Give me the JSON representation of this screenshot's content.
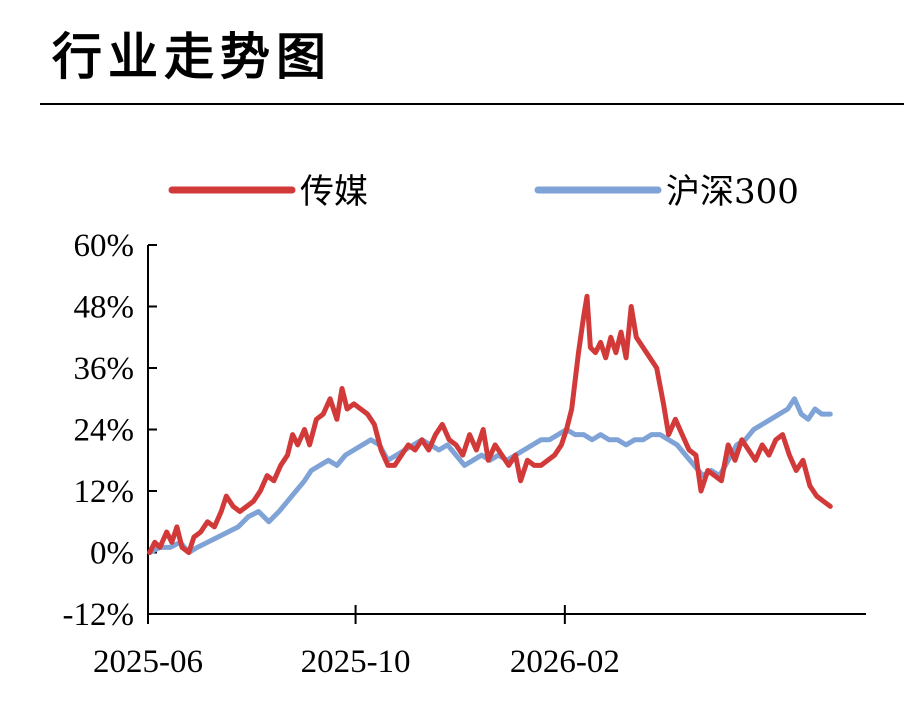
{
  "title": "行业走势图",
  "colors": {
    "media": "#d23a3a",
    "hs300": "#7fa3d6",
    "axis": "#000000"
  },
  "chart_data": {
    "type": "line",
    "legend_position": "top",
    "grid": false,
    "x_ticks": [
      "2025-06",
      "2025-10",
      "2026-02"
    ],
    "y_ticks": [
      "60%",
      "48%",
      "36%",
      "24%",
      "12%",
      "0%",
      "-12%"
    ],
    "ylim": [
      -12,
      60
    ],
    "xlim": [
      "2025-06",
      "2026-07-28"
    ],
    "series": [
      {
        "name": "传媒",
        "color": "#d23a3a",
        "points": [
          [
            "2025-06-02",
            0
          ],
          [
            "2025-06-05",
            2
          ],
          [
            "2025-06-08",
            1
          ],
          [
            "2025-06-12",
            4
          ],
          [
            "2025-06-15",
            2
          ],
          [
            "2025-06-18",
            5
          ],
          [
            "2025-06-21",
            1
          ],
          [
            "2025-06-25",
            0
          ],
          [
            "2025-06-28",
            3
          ],
          [
            "2025-07-02",
            4
          ],
          [
            "2025-07-06",
            6
          ],
          [
            "2025-07-10",
            5
          ],
          [
            "2025-07-14",
            8
          ],
          [
            "2025-07-17",
            11
          ],
          [
            "2025-07-21",
            9
          ],
          [
            "2025-07-25",
            8
          ],
          [
            "2025-07-29",
            9
          ],
          [
            "2025-08-02",
            10
          ],
          [
            "2025-08-06",
            12
          ],
          [
            "2025-08-10",
            15
          ],
          [
            "2025-08-14",
            14
          ],
          [
            "2025-08-18",
            17
          ],
          [
            "2025-08-22",
            19
          ],
          [
            "2025-08-25",
            23
          ],
          [
            "2025-08-28",
            21
          ],
          [
            "2025-09-01",
            24
          ],
          [
            "2025-09-04",
            21
          ],
          [
            "2025-09-08",
            26
          ],
          [
            "2025-09-12",
            27
          ],
          [
            "2025-09-16",
            30
          ],
          [
            "2025-09-20",
            26
          ],
          [
            "2025-09-23",
            32
          ],
          [
            "2025-09-26",
            28
          ],
          [
            "2025-09-30",
            29
          ],
          [
            "2025-10-04",
            28
          ],
          [
            "2025-10-08",
            27
          ],
          [
            "2025-10-12",
            25
          ],
          [
            "2025-10-16",
            20
          ],
          [
            "2025-10-20",
            17
          ],
          [
            "2025-10-24",
            17
          ],
          [
            "2025-10-28",
            19
          ],
          [
            "2025-11-01",
            21
          ],
          [
            "2025-11-05",
            20
          ],
          [
            "2025-11-09",
            22
          ],
          [
            "2025-11-13",
            20
          ],
          [
            "2025-11-17",
            23
          ],
          [
            "2025-11-21",
            25
          ],
          [
            "2025-11-25",
            22
          ],
          [
            "2025-11-29",
            21
          ],
          [
            "2025-12-03",
            19
          ],
          [
            "2025-12-07",
            23
          ],
          [
            "2025-12-11",
            20
          ],
          [
            "2025-12-15",
            24
          ],
          [
            "2025-12-18",
            18
          ],
          [
            "2025-12-22",
            21
          ],
          [
            "2025-12-26",
            19
          ],
          [
            "2025-12-30",
            17
          ],
          [
            "2026-01-03",
            19
          ],
          [
            "2026-01-06",
            14
          ],
          [
            "2026-01-10",
            18
          ],
          [
            "2026-01-14",
            17
          ],
          [
            "2026-01-18",
            17
          ],
          [
            "2026-01-22",
            18
          ],
          [
            "2026-01-26",
            19
          ],
          [
            "2026-01-30",
            21
          ],
          [
            "2026-02-02",
            24
          ],
          [
            "2026-02-05",
            28
          ],
          [
            "2026-02-09",
            39
          ],
          [
            "2026-02-12",
            46
          ],
          [
            "2026-02-14",
            50
          ],
          [
            "2026-02-16",
            40
          ],
          [
            "2026-02-19",
            39
          ],
          [
            "2026-02-22",
            41
          ],
          [
            "2026-02-25",
            38
          ],
          [
            "2026-02-28",
            42
          ],
          [
            "2026-03-03",
            39
          ],
          [
            "2026-03-06",
            43
          ],
          [
            "2026-03-09",
            38
          ],
          [
            "2026-03-12",
            48
          ],
          [
            "2026-03-15",
            42
          ],
          [
            "2026-03-19",
            40
          ],
          [
            "2026-03-23",
            38
          ],
          [
            "2026-03-27",
            36
          ],
          [
            "2026-03-31",
            29
          ],
          [
            "2026-04-03",
            23
          ],
          [
            "2026-04-07",
            26
          ],
          [
            "2026-04-11",
            23
          ],
          [
            "2026-04-15",
            20
          ],
          [
            "2026-04-19",
            19
          ],
          [
            "2026-04-22",
            12
          ],
          [
            "2026-04-26",
            16
          ],
          [
            "2026-04-30",
            15
          ],
          [
            "2026-05-04",
            14
          ],
          [
            "2026-05-08",
            21
          ],
          [
            "2026-05-12",
            18
          ],
          [
            "2026-05-16",
            22
          ],
          [
            "2026-05-20",
            20
          ],
          [
            "2026-05-24",
            18
          ],
          [
            "2026-05-28",
            21
          ],
          [
            "2026-06-01",
            19
          ],
          [
            "2026-06-05",
            22
          ],
          [
            "2026-06-09",
            23
          ],
          [
            "2026-06-13",
            19
          ],
          [
            "2026-06-17",
            16
          ],
          [
            "2026-06-21",
            18
          ],
          [
            "2026-06-25",
            13
          ],
          [
            "2026-06-29",
            11
          ],
          [
            "2026-07-03",
            10
          ],
          [
            "2026-07-07",
            9
          ]
        ]
      },
      {
        "name": "沪深300",
        "color": "#7fa3d6",
        "points": [
          [
            "2025-06-02",
            0
          ],
          [
            "2025-06-08",
            1
          ],
          [
            "2025-06-14",
            1
          ],
          [
            "2025-06-20",
            2
          ],
          [
            "2025-06-25",
            0
          ],
          [
            "2025-06-30",
            1
          ],
          [
            "2025-07-06",
            2
          ],
          [
            "2025-07-12",
            3
          ],
          [
            "2025-07-18",
            4
          ],
          [
            "2025-07-24",
            5
          ],
          [
            "2025-07-30",
            7
          ],
          [
            "2025-08-05",
            8
          ],
          [
            "2025-08-11",
            6
          ],
          [
            "2025-08-17",
            8
          ],
          [
            "2025-08-22",
            10
          ],
          [
            "2025-08-27",
            12
          ],
          [
            "2025-09-01",
            14
          ],
          [
            "2025-09-05",
            16
          ],
          [
            "2025-09-10",
            17
          ],
          [
            "2025-09-15",
            18
          ],
          [
            "2025-09-20",
            17
          ],
          [
            "2025-09-25",
            19
          ],
          [
            "2025-09-30",
            20
          ],
          [
            "2025-10-05",
            21
          ],
          [
            "2025-10-10",
            22
          ],
          [
            "2025-10-15",
            21
          ],
          [
            "2025-10-20",
            18
          ],
          [
            "2025-10-25",
            19
          ],
          [
            "2025-10-30",
            20
          ],
          [
            "2025-11-04",
            21
          ],
          [
            "2025-11-09",
            22
          ],
          [
            "2025-11-14",
            21
          ],
          [
            "2025-11-19",
            20
          ],
          [
            "2025-11-24",
            21
          ],
          [
            "2025-11-29",
            19
          ],
          [
            "2025-12-04",
            17
          ],
          [
            "2025-12-09",
            18
          ],
          [
            "2025-12-14",
            19
          ],
          [
            "2025-12-19",
            18
          ],
          [
            "2025-12-24",
            19
          ],
          [
            "2025-12-29",
            18
          ],
          [
            "2026-01-03",
            19
          ],
          [
            "2026-01-08",
            20
          ],
          [
            "2026-01-13",
            21
          ],
          [
            "2026-01-18",
            22
          ],
          [
            "2026-01-23",
            22
          ],
          [
            "2026-01-28",
            23
          ],
          [
            "2026-02-02",
            24
          ],
          [
            "2026-02-07",
            23
          ],
          [
            "2026-02-12",
            23
          ],
          [
            "2026-02-17",
            22
          ],
          [
            "2026-02-22",
            23
          ],
          [
            "2026-02-27",
            22
          ],
          [
            "2026-03-04",
            22
          ],
          [
            "2026-03-09",
            21
          ],
          [
            "2026-03-14",
            22
          ],
          [
            "2026-03-19",
            22
          ],
          [
            "2026-03-24",
            23
          ],
          [
            "2026-03-29",
            23
          ],
          [
            "2026-04-03",
            22
          ],
          [
            "2026-04-08",
            21
          ],
          [
            "2026-04-13",
            19
          ],
          [
            "2026-04-18",
            17
          ],
          [
            "2026-04-23",
            15
          ],
          [
            "2026-04-28",
            16
          ],
          [
            "2026-05-03",
            15
          ],
          [
            "2026-05-08",
            18
          ],
          [
            "2026-05-13",
            21
          ],
          [
            "2026-05-18",
            22
          ],
          [
            "2026-05-23",
            24
          ],
          [
            "2026-05-28",
            25
          ],
          [
            "2026-06-02",
            26
          ],
          [
            "2026-06-07",
            27
          ],
          [
            "2026-06-12",
            28
          ],
          [
            "2026-06-16",
            30
          ],
          [
            "2026-06-20",
            27
          ],
          [
            "2026-06-24",
            26
          ],
          [
            "2026-06-28",
            28
          ],
          [
            "2026-07-02",
            27
          ],
          [
            "2026-07-07",
            27
          ]
        ]
      }
    ]
  }
}
